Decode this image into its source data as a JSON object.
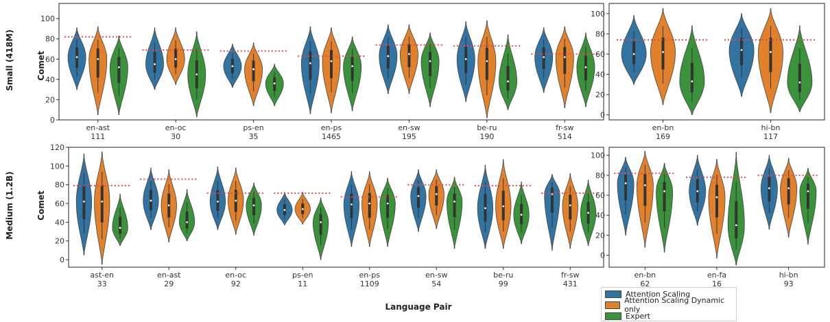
{
  "x_axis_label": "Language Pair",
  "y_axis_label": "Comet",
  "rows": [
    {
      "label": "Small (418M)"
    },
    {
      "label": "Medium (1.2B)"
    }
  ],
  "legend": {
    "items": [
      {
        "name": "Attention Scaling",
        "color": "#3274a1"
      },
      {
        "name": "Attention Scaling Dynamic only",
        "color": "#e1812c"
      },
      {
        "name": "Expert",
        "color": "#3a923a"
      }
    ]
  },
  "chart_data": [
    {
      "type": "violin",
      "panel": "small-left",
      "ylabel": "Comet",
      "ylim": [
        0,
        115
      ],
      "yticks": [
        0,
        20,
        40,
        60,
        80,
        100
      ],
      "series": [
        "Attention Scaling",
        "Attention Scaling Dynamic only",
        "Expert"
      ],
      "reference_line": "red dotted",
      "groups": [
        {
          "label": "en-ast",
          "count": "111",
          "ref": 82,
          "violins": [
            {
              "min": 30,
              "max": 91,
              "median": 62
            },
            {
              "min": 5,
              "max": 92,
              "median": 60
            },
            {
              "min": 5,
              "max": 83,
              "median": 52
            }
          ]
        },
        {
          "label": "en-oc",
          "count": "30",
          "ref": 69,
          "violins": [
            {
              "min": 30,
              "max": 91,
              "median": 55
            },
            {
              "min": 35,
              "max": 91,
              "median": 60
            },
            {
              "min": 3,
              "max": 87,
              "median": 45
            }
          ]
        },
        {
          "label": "ps-en",
          "count": "35",
          "ref": 68,
          "violins": [
            {
              "min": 32,
              "max": 75,
              "median": 53
            },
            {
              "min": 14,
              "max": 76,
              "median": 50
            },
            {
              "min": 14,
              "max": 55,
              "median": 36
            }
          ]
        },
        {
          "label": "en-ps",
          "count": "1465",
          "ref": 63,
          "violins": [
            {
              "min": 6,
              "max": 92,
              "median": 56
            },
            {
              "min": 7,
              "max": 91,
              "median": 58
            },
            {
              "min": 9,
              "max": 82,
              "median": 53
            }
          ]
        },
        {
          "label": "en-sw",
          "count": "195",
          "ref": 74,
          "violins": [
            {
              "min": 26,
              "max": 94,
              "median": 63
            },
            {
              "min": 26,
              "max": 94,
              "median": 65
            },
            {
              "min": 13,
              "max": 86,
              "median": 58
            }
          ]
        },
        {
          "label": "be-ru",
          "count": "190",
          "ref": 73,
          "violins": [
            {
              "min": 18,
              "max": 97,
              "median": 60
            },
            {
              "min": 2,
              "max": 98,
              "median": 58
            },
            {
              "min": 10,
              "max": 84,
              "median": 38
            }
          ]
        },
        {
          "label": "fr-sw",
          "count": "514",
          "ref": 65,
          "violins": [
            {
              "min": 27,
              "max": 91,
              "median": 62
            },
            {
              "min": 12,
              "max": 92,
              "median": 62
            },
            {
              "min": 13,
              "max": 86,
              "median": 52
            }
          ]
        }
      ]
    },
    {
      "type": "violin",
      "panel": "small-right",
      "ylabel": "",
      "ylim": [
        -5,
        110
      ],
      "yticks": [
        0,
        20,
        40,
        60,
        80,
        100
      ],
      "series": [
        "Attention Scaling",
        "Attention Scaling Dynamic only",
        "Expert"
      ],
      "reference_line": "red dotted",
      "groups": [
        {
          "label": "en-bn",
          "count": "169",
          "ref": 74,
          "violins": [
            {
              "min": 30,
              "max": 98,
              "median": 60
            },
            {
              "min": 10,
              "max": 105,
              "median": 62
            },
            {
              "min": 0,
              "max": 88,
              "median": 33
            }
          ]
        },
        {
          "label": "hi-bn",
          "count": "117",
          "ref": 74,
          "violins": [
            {
              "min": 18,
              "max": 100,
              "median": 64
            },
            {
              "min": 2,
              "max": 105,
              "median": 62
            },
            {
              "min": 3,
              "max": 88,
              "median": 32
            }
          ]
        }
      ]
    },
    {
      "type": "violin",
      "panel": "medium-left",
      "ylabel": "Comet",
      "ylim": [
        -8,
        120
      ],
      "yticks": [
        0,
        20,
        40,
        60,
        80,
        100,
        120
      ],
      "series": [
        "Attention Scaling",
        "Attention Scaling Dynamic only",
        "Expert"
      ],
      "reference_line": "red dotted",
      "groups": [
        {
          "label": "ast-en",
          "count": "33",
          "ref": 79,
          "violins": [
            {
              "min": 5,
              "max": 113,
              "median": 62
            },
            {
              "min": -5,
              "max": 115,
              "median": 62
            },
            {
              "min": 15,
              "max": 70,
              "median": 34
            }
          ]
        },
        {
          "label": "en-ast",
          "count": "29",
          "ref": 86,
          "violins": [
            {
              "min": 32,
              "max": 98,
              "median": 63
            },
            {
              "min": 19,
              "max": 96,
              "median": 58
            },
            {
              "min": 20,
              "max": 75,
              "median": 40
            }
          ]
        },
        {
          "label": "en-oc",
          "count": "92",
          "ref": 71,
          "violins": [
            {
              "min": 32,
              "max": 99,
              "median": 62
            },
            {
              "min": 27,
              "max": 98,
              "median": 63
            },
            {
              "min": 26,
              "max": 82,
              "median": 58
            }
          ]
        },
        {
          "label": "ps-en",
          "count": "11",
          "ref": 71,
          "violins": [
            {
              "min": 37,
              "max": 72,
              "median": 53
            },
            {
              "min": 38,
              "max": 72,
              "median": 54
            },
            {
              "min": 0,
              "max": 66,
              "median": 40
            }
          ]
        },
        {
          "label": "en-ps",
          "count": "1109",
          "ref": 67,
          "violins": [
            {
              "min": 14,
              "max": 94,
              "median": 59
            },
            {
              "min": 14,
              "max": 94,
              "median": 60
            },
            {
              "min": 14,
              "max": 87,
              "median": 60
            }
          ]
        },
        {
          "label": "en-sw",
          "count": "54",
          "ref": 80,
          "violins": [
            {
              "min": 30,
              "max": 96,
              "median": 68
            },
            {
              "min": 33,
              "max": 96,
              "median": 70
            },
            {
              "min": 12,
              "max": 88,
              "median": 62
            }
          ]
        },
        {
          "label": "be-ru",
          "count": "99",
          "ref": 79,
          "violins": [
            {
              "min": 12,
              "max": 101,
              "median": 55
            },
            {
              "min": 12,
              "max": 107,
              "median": 57
            },
            {
              "min": 17,
              "max": 83,
              "median": 48
            }
          ]
        },
        {
          "label": "fr-sw",
          "count": "431",
          "ref": 71,
          "violins": [
            {
              "min": 10,
              "max": 91,
              "median": 70
            },
            {
              "min": 12,
              "max": 92,
              "median": 58
            },
            {
              "min": 15,
              "max": 85,
              "median": 50
            }
          ]
        }
      ]
    },
    {
      "type": "violin",
      "panel": "medium-right",
      "ylabel": "",
      "ylim": [
        -12,
        108
      ],
      "yticks": [
        0,
        20,
        40,
        60,
        80,
        100
      ],
      "series": [
        "Attention Scaling",
        "Attention Scaling Dynamic only",
        "Expert"
      ],
      "reference_line": "red dotted",
      "groups": [
        {
          "label": "en-bn",
          "count": "62",
          "ref": 82,
          "violins": [
            {
              "min": 20,
              "max": 98,
              "median": 72
            },
            {
              "min": 8,
              "max": 104,
              "median": 70
            },
            {
              "min": 3,
              "max": 92,
              "median": 64
            }
          ]
        },
        {
          "label": "en-fa",
          "count": "16",
          "ref": 78,
          "violins": [
            {
              "min": 30,
              "max": 100,
              "median": 64
            },
            {
              "min": -3,
              "max": 96,
              "median": 58
            },
            {
              "min": -10,
              "max": 103,
              "median": 30
            }
          ]
        },
        {
          "label": "hi-bn",
          "count": "93",
          "ref": 80,
          "violins": [
            {
              "min": 26,
              "max": 100,
              "median": 67
            },
            {
              "min": 18,
              "max": 97,
              "median": 67
            },
            {
              "min": 11,
              "max": 87,
              "median": 64
            }
          ]
        }
      ]
    }
  ]
}
